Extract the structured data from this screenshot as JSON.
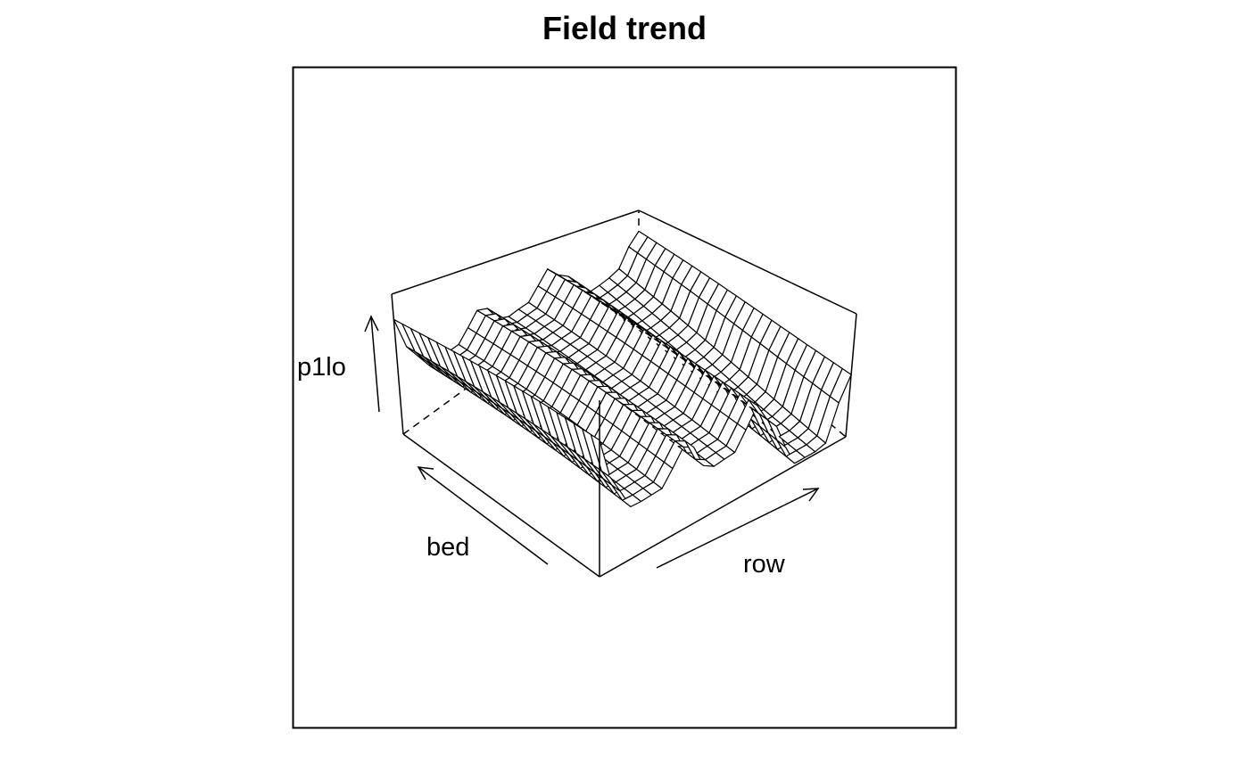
{
  "chart_data": {
    "type": "surface",
    "title": "Field trend",
    "xlabel": "row",
    "ylabel": "bed",
    "zlabel": "p1lo",
    "ticks": false,
    "view": "perspective mesh",
    "grid_resolution": [
      25,
      25
    ],
    "surface_description": {
      "along_row": "wavy: high at row start, dip, rise, dip, ridge, deep trough, rise at far end",
      "along_bed": "gradually lower toward high bed values"
    },
    "line_color": "#000000",
    "background": "#ffffff"
  }
}
